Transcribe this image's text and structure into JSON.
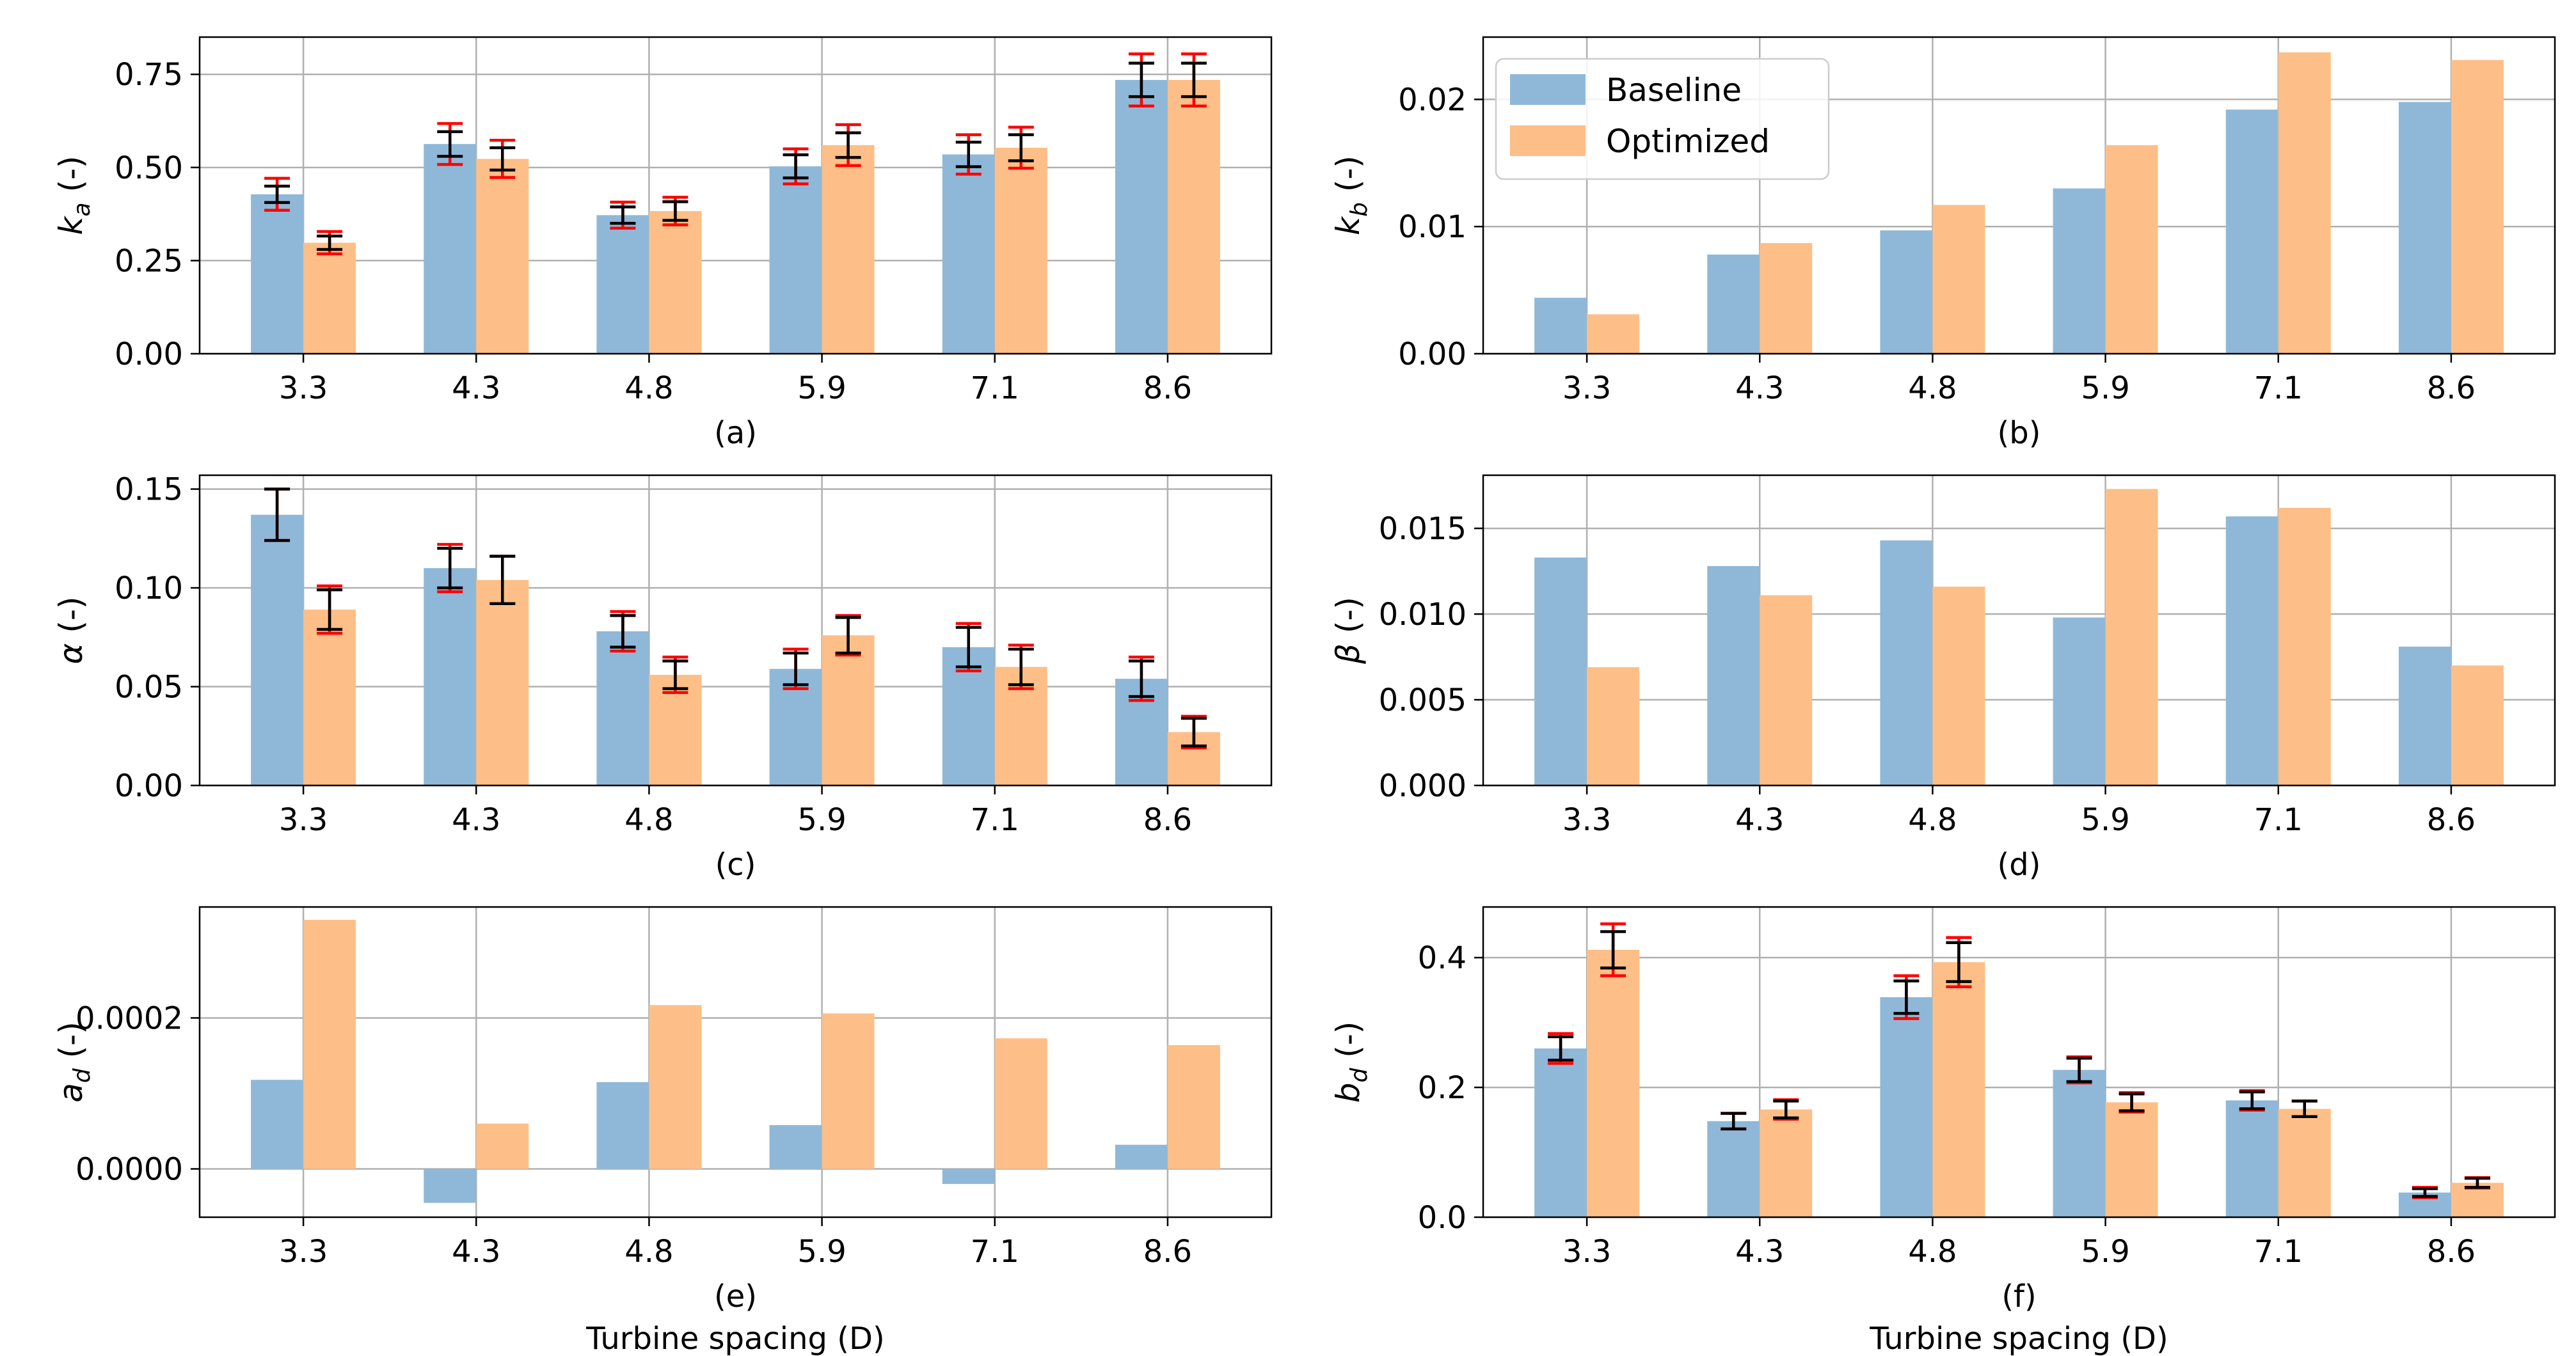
{
  "colors": {
    "baseline": "#8fb8d8",
    "optimized": "#fdbf87",
    "grid": "#b0b0b0",
    "errbar_outer": "#ff0000",
    "errbar_inner": "#000000"
  },
  "legend": {
    "baseline": "Baseline",
    "optimized": "Optimized"
  },
  "xlabel_common": "Turbine spacing (D)",
  "chart_data": [
    {
      "id": "a",
      "type": "bar",
      "caption": "(a)",
      "ylabel_main": "k",
      "ylabel_sub": "a",
      "ylabel_unit": " (-)",
      "categories": [
        "3.3",
        "4.3",
        "4.8",
        "5.9",
        "7.1",
        "8.6"
      ],
      "ylim": [
        0,
        0.85
      ],
      "yticks": [
        0,
        0.25,
        0.5,
        0.75
      ],
      "ytick_labels": [
        "0.00",
        "0.25",
        "0.50",
        "0.75"
      ],
      "series": [
        {
          "name": "Baseline",
          "values": [
            0.428,
            0.563,
            0.372,
            0.503,
            0.535,
            0.735
          ],
          "err_outer": [
            0.043,
            0.055,
            0.035,
            0.047,
            0.053,
            0.07
          ],
          "err_inner": [
            0.022,
            0.033,
            0.022,
            0.031,
            0.033,
            0.045
          ]
        },
        {
          "name": "Optimized",
          "values": [
            0.298,
            0.523,
            0.383,
            0.56,
            0.553,
            0.735
          ],
          "err_outer": [
            0.03,
            0.05,
            0.037,
            0.055,
            0.055,
            0.07
          ],
          "err_inner": [
            0.018,
            0.03,
            0.025,
            0.033,
            0.035,
            0.045
          ]
        }
      ]
    },
    {
      "id": "b",
      "type": "bar",
      "caption": "(b)",
      "ylabel_main": "k",
      "ylabel_sub": "b",
      "ylabel_unit": " (-)",
      "categories": [
        "3.3",
        "4.3",
        "4.8",
        "5.9",
        "7.1",
        "8.6"
      ],
      "ylim": [
        0,
        0.0249
      ],
      "yticks": [
        0,
        0.01,
        0.02
      ],
      "ytick_labels": [
        "0.00",
        "0.01",
        "0.02"
      ],
      "legend_position": "top-left",
      "series": [
        {
          "name": "Baseline",
          "values": [
            0.0044,
            0.0078,
            0.0097,
            0.013,
            0.0192,
            0.0198
          ]
        },
        {
          "name": "Optimized",
          "values": [
            0.0031,
            0.0087,
            0.0117,
            0.0164,
            0.0237,
            0.0231
          ]
        }
      ]
    },
    {
      "id": "c",
      "type": "bar",
      "caption": "(c)",
      "ylabel_main": "α",
      "ylabel_sub": "",
      "ylabel_unit": " (-)",
      "categories": [
        "3.3",
        "4.3",
        "4.8",
        "5.9",
        "7.1",
        "8.6"
      ],
      "ylim": [
        0,
        0.157
      ],
      "yticks": [
        0,
        0.05,
        0.1,
        0.15
      ],
      "ytick_labels": [
        "0.00",
        "0.05",
        "0.10",
        "0.15"
      ],
      "series": [
        {
          "name": "Baseline",
          "values": [
            0.137,
            0.11,
            0.078,
            0.059,
            0.07,
            0.054
          ],
          "err_outer": [
            0.013,
            0.012,
            0.01,
            0.01,
            0.012,
            0.011
          ],
          "err_inner": [
            0.013,
            0.01,
            0.008,
            0.008,
            0.01,
            0.009
          ]
        },
        {
          "name": "Optimized",
          "values": [
            0.089,
            0.104,
            0.056,
            0.076,
            0.06,
            0.027
          ],
          "err_outer": [
            0.012,
            0.012,
            0.009,
            0.01,
            0.011,
            0.008
          ],
          "err_inner": [
            0.01,
            0.012,
            0.007,
            0.009,
            0.009,
            0.007
          ]
        }
      ]
    },
    {
      "id": "d",
      "type": "bar",
      "caption": "(d)",
      "ylabel_main": "β",
      "ylabel_sub": "",
      "ylabel_unit": " (-)",
      "categories": [
        "3.3",
        "4.3",
        "4.8",
        "5.9",
        "7.1",
        "8.6"
      ],
      "ylim": [
        0,
        0.0181
      ],
      "yticks": [
        0,
        0.005,
        0.01,
        0.015
      ],
      "ytick_labels": [
        "0.000",
        "0.005",
        "0.010",
        "0.015"
      ],
      "series": [
        {
          "name": "Baseline",
          "values": [
            0.0133,
            0.0128,
            0.0143,
            0.0098,
            0.0157,
            0.0081
          ]
        },
        {
          "name": "Optimized",
          "values": [
            0.0069,
            0.0111,
            0.0116,
            0.0173,
            0.0162,
            0.007
          ]
        }
      ]
    },
    {
      "id": "e",
      "type": "bar",
      "caption": "(e)",
      "ylabel_main": "a",
      "ylabel_sub": "d",
      "ylabel_unit": " (-)",
      "categories": [
        "3.3",
        "4.3",
        "4.8",
        "5.9",
        "7.1",
        "8.6"
      ],
      "ylim": [
        -6.4e-05,
        0.000347
      ],
      "yticks": [
        0,
        0.0002
      ],
      "ytick_labels": [
        "0.0000",
        "0.0002"
      ],
      "xlabel": "Turbine spacing (D)",
      "series": [
        {
          "name": "Baseline",
          "values": [
            0.000118,
            -4.5e-05,
            0.000115,
            5.8e-05,
            -2e-05,
            3.2e-05
          ]
        },
        {
          "name": "Optimized",
          "values": [
            0.00033,
            6e-05,
            0.000217,
            0.000206,
            0.000173,
            0.000164
          ]
        }
      ]
    },
    {
      "id": "f",
      "type": "bar",
      "caption": "(f)",
      "ylabel_main": "b",
      "ylabel_sub": "d",
      "ylabel_unit": " (-)",
      "categories": [
        "3.3",
        "4.3",
        "4.8",
        "5.9",
        "7.1",
        "8.6"
      ],
      "ylim": [
        0,
        0.478
      ],
      "yticks": [
        0,
        0.2,
        0.4
      ],
      "ytick_labels": [
        "0.0",
        "0.2",
        "0.4"
      ],
      "xlabel": "Turbine spacing (D)",
      "series": [
        {
          "name": "Baseline",
          "values": [
            0.26,
            0.148,
            0.339,
            0.227,
            0.18,
            0.038
          ],
          "err_outer": [
            0.023,
            0.012,
            0.033,
            0.02,
            0.015,
            0.008
          ],
          "err_inner": [
            0.018,
            0.012,
            0.025,
            0.018,
            0.013,
            0.006
          ]
        },
        {
          "name": "Optimized",
          "values": [
            0.412,
            0.166,
            0.393,
            0.177,
            0.167,
            0.053
          ],
          "err_outer": [
            0.04,
            0.015,
            0.038,
            0.015,
            0.012,
            0.008
          ],
          "err_inner": [
            0.028,
            0.013,
            0.03,
            0.013,
            0.012,
            0.007
          ]
        }
      ]
    }
  ]
}
